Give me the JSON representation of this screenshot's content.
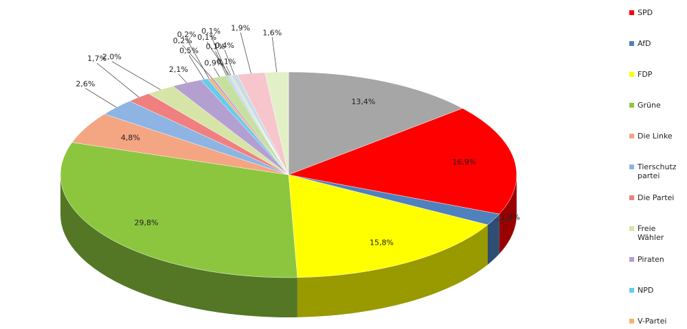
{
  "chart_data": {
    "type": "pie3d",
    "categories": [
      null,
      "SPD",
      "AfD",
      "FDP",
      "Grüne",
      "Die Linke",
      "Tierschutz partei",
      "Die Partei",
      "Freie Wähler",
      "Piraten",
      "NPD",
      "V-Partei",
      null,
      null,
      null,
      null,
      null,
      null,
      null,
      null,
      null
    ],
    "values": [
      13.4,
      16.9,
      1.8,
      15.8,
      29.8,
      4.8,
      2.6,
      1.7,
      2.0,
      2.1,
      0.5,
      0.2,
      0.2,
      0.9,
      0.1,
      0.1,
      0.1,
      0.1,
      0.4,
      1.9,
      1.6
    ],
    "value_labels": [
      "13,4%",
      "16,9%",
      "1,8%",
      "15,8%",
      "29,8%",
      "4,8%",
      "2,6%",
      "1,7%",
      "2,0%",
      "2,1%",
      "0,5%",
      "0,2%",
      "0,2%",
      "0,9%",
      "0,1%",
      "0,1%",
      "0,1%",
      "0,1%",
      "0,4%",
      "1,9%",
      "1,6%"
    ],
    "colors": [
      "#a6a6a6",
      "#ff0000",
      "#4f81bd",
      "#ffff00",
      "#8cc63f",
      "#f4a582",
      "#8db4e2",
      "#f08080",
      "#d7e4a8",
      "#b4a0d0",
      "#66ccee",
      "#f6b26b",
      "#c9a0c9",
      "#c6e0a0",
      "#9ad0e6",
      "#e0c0e0",
      "#c0d8f0",
      "#d0e8b0",
      "#c8dce8",
      "#f6c6cc",
      "#e2f0c8"
    ]
  }
}
